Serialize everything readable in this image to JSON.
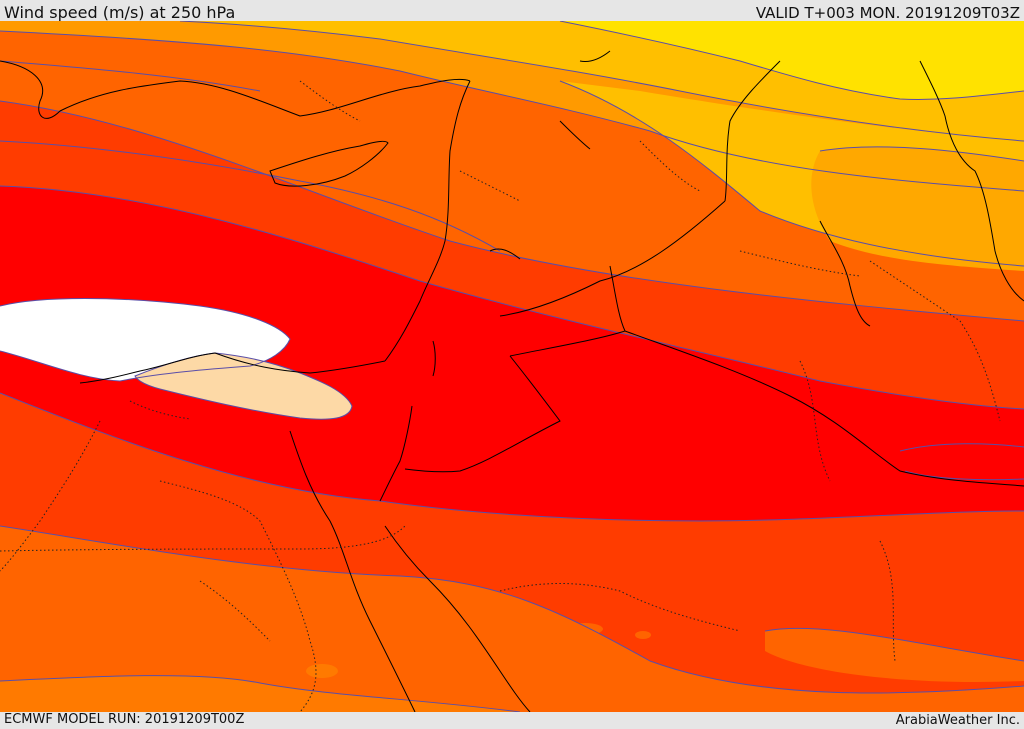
{
  "header": {
    "title": "Wind speed (m/s) at 250 hPa",
    "valid": "VALID T+003 MON. 20191209T03Z"
  },
  "footer": {
    "model_run": "ECMWF MODEL RUN: 20191209T00Z",
    "credit": "ArabiaWeather Inc."
  },
  "colors": {
    "yellow": "#ffe200",
    "gold": "#ffbf00",
    "orange_light": "#ff9a00",
    "orange": "#ff6400",
    "orange_red": "#ff3c00",
    "red": "#ff0000",
    "peach": "#fdd9a6",
    "white": "#ffffff",
    "contour": "#5a4ea8",
    "coast": "#000000"
  }
}
